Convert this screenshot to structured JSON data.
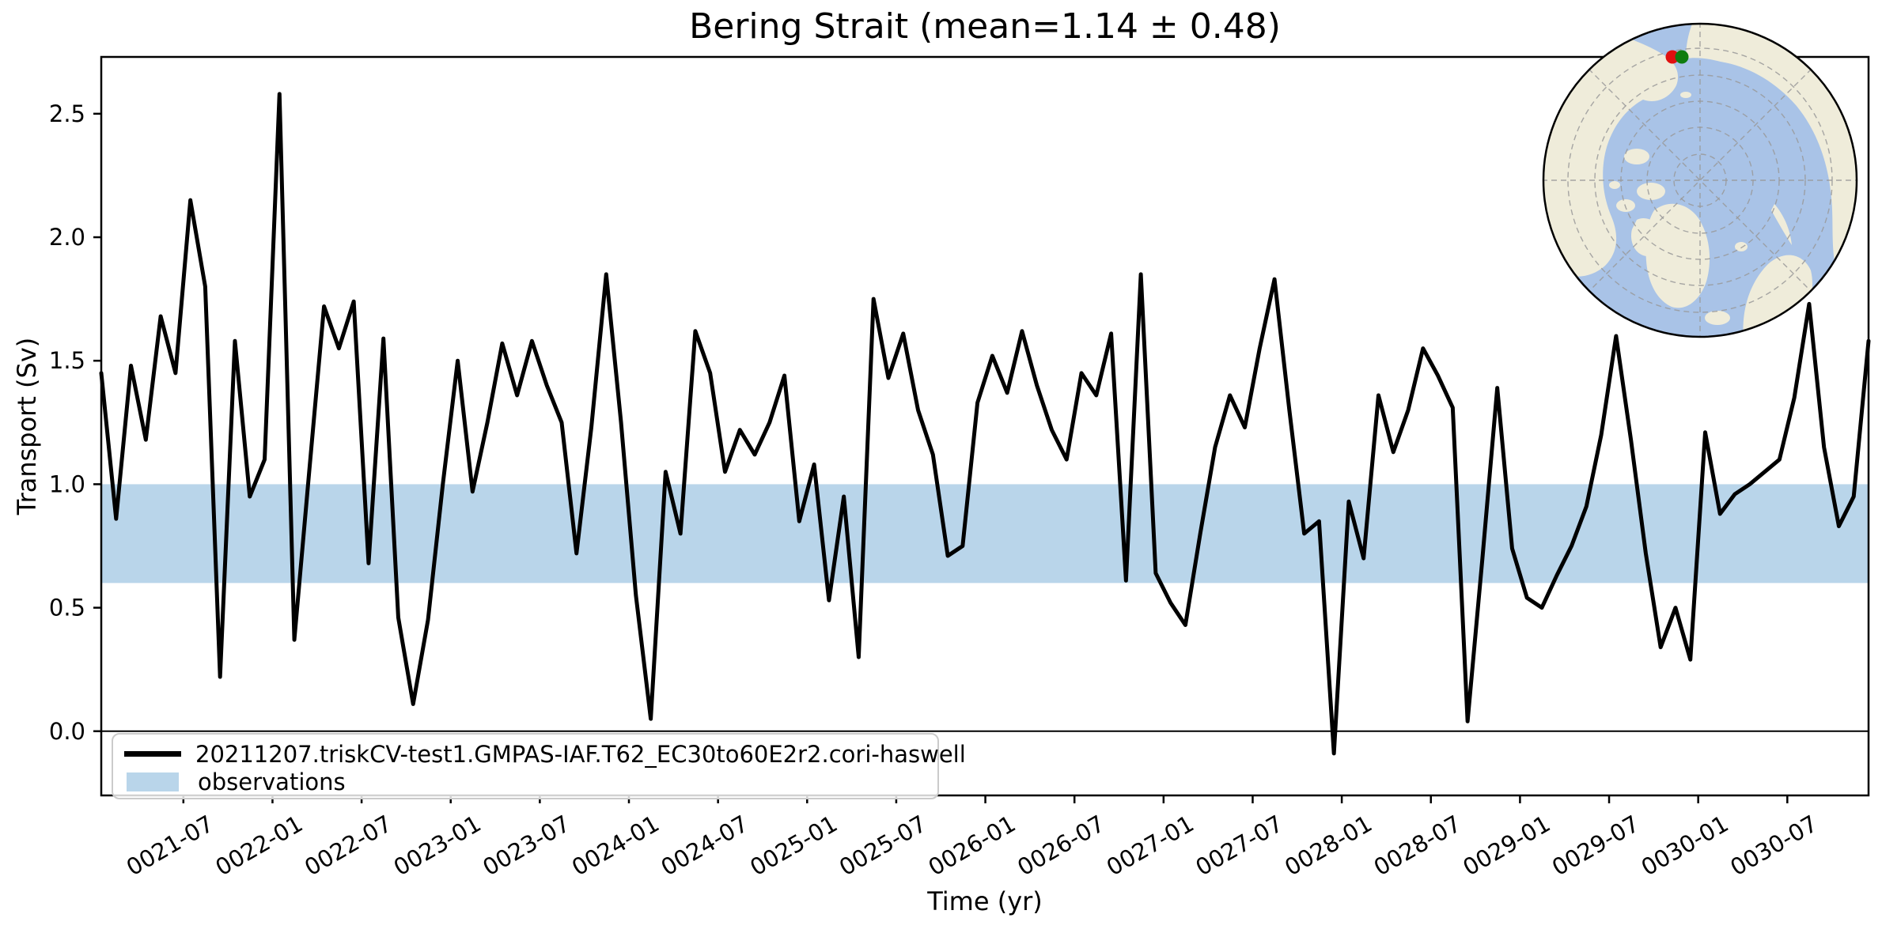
{
  "title": "Bering Strait (mean=1.14 ± 0.48)",
  "axes": {
    "xlabel": "Time (yr)",
    "ylabel": "Transport (Sv)"
  },
  "legend": {
    "items": [
      {
        "label": "20211207.triskCV-test1.GMPAS-IAF.T62_EC30to60E2r2.cori-haswell",
        "swatch": "line"
      },
      {
        "label": "observations",
        "swatch": "patch"
      }
    ]
  },
  "colors": {
    "series": "#000000",
    "observations_band": "#b9d5ea",
    "zero_line": "#000000",
    "map_ocean": "#a9c3e7",
    "map_land": "#efecda",
    "map_graticule": "#999999",
    "map_dot_red": "#e01010",
    "map_dot_green": "#0f7d0f"
  },
  "inset_map": {
    "type": "north-polar-map",
    "dot_colors": [
      "#e01010",
      "#0f7d0f"
    ]
  },
  "chart_data": {
    "type": "line",
    "title": "Bering Strait (mean=1.14 ± 0.48)",
    "xlabel": "Time (yr)",
    "ylabel": "Transport (Sv)",
    "mean": 1.14,
    "std": 0.48,
    "x_start": "0021-01",
    "x_end": "0030-12",
    "x_frequency": "monthly",
    "x_tick_labels": [
      "0021-07",
      "0022-01",
      "0022-07",
      "0023-01",
      "0023-07",
      "0024-01",
      "0024-07",
      "0025-01",
      "0025-07",
      "0026-01",
      "0026-07",
      "0027-01",
      "0027-07",
      "0028-01",
      "0028-07",
      "0029-01",
      "0029-07",
      "0030-01",
      "0030-07"
    ],
    "y_ticks": [
      0.0,
      0.5,
      1.0,
      1.5,
      2.0,
      2.5
    ],
    "ylim": [
      -0.26,
      2.73
    ],
    "grid": false,
    "legend_position": "lower left",
    "zero_line": 0.0,
    "observations_band": {
      "label": "observations",
      "min": 0.6,
      "max": 1.0
    },
    "series": [
      {
        "name": "20211207.triskCV-test1.GMPAS-IAF.T62_EC30to60E2r2.cori-haswell",
        "color": "#000000",
        "values": [
          1.45,
          0.86,
          1.48,
          1.18,
          1.68,
          1.45,
          2.15,
          1.8,
          0.22,
          1.58,
          0.95,
          1.1,
          2.58,
          0.37,
          1.05,
          1.72,
          1.55,
          1.74,
          0.68,
          1.59,
          0.46,
          0.11,
          0.45,
          1.0,
          1.5,
          0.97,
          1.25,
          1.57,
          1.36,
          1.58,
          1.4,
          1.25,
          0.72,
          1.23,
          1.85,
          1.25,
          0.55,
          0.05,
          1.05,
          0.8,
          1.62,
          1.45,
          1.05,
          1.22,
          1.12,
          1.25,
          1.44,
          0.85,
          1.08,
          0.53,
          0.95,
          0.3,
          1.75,
          1.43,
          1.61,
          1.3,
          1.12,
          0.71,
          0.75,
          1.33,
          1.52,
          1.37,
          1.62,
          1.4,
          1.22,
          1.1,
          1.45,
          1.36,
          1.61,
          0.61,
          1.85,
          0.64,
          0.52,
          0.43,
          0.8,
          1.15,
          1.36,
          1.23,
          1.55,
          1.83,
          1.3,
          0.8,
          0.85,
          -0.09,
          0.93,
          0.7,
          1.36,
          1.13,
          1.3,
          1.55,
          1.44,
          1.31,
          0.04,
          0.7,
          1.39,
          0.74,
          0.54,
          0.5,
          0.63,
          0.75,
          0.91,
          1.2,
          1.6,
          1.18,
          0.72,
          0.34,
          0.5,
          0.29,
          1.21,
          0.88,
          0.96,
          1.0,
          1.05,
          1.1,
          1.35,
          1.73,
          1.15,
          0.83,
          0.95,
          1.58
        ]
      }
    ]
  }
}
